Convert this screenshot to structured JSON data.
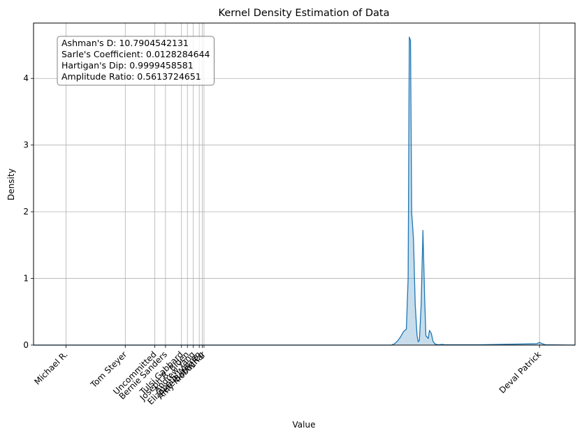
{
  "chart_data": {
    "type": "area",
    "title": "Kernel Density Estimation of Data",
    "xlabel": "Value",
    "ylabel": "Density",
    "ylim": [
      0,
      4.83
    ],
    "y_ticks": [
      0,
      1,
      2,
      3,
      4
    ],
    "grid": true,
    "line_color": "#1f77b4",
    "fill_color": "#1f77b4",
    "fill_opacity": 0.25,
    "x_categories": [
      "Michael R.",
      "Tom Steyer",
      "Uncommitted",
      "Bernie Sanders",
      "Tulsi Gabbard",
      "Joseph R. Biden",
      "Andrew Yang",
      "Elizabeth Warren",
      "Pete Buttigieg",
      "Amy Klobuchar",
      "Deval Patrick"
    ],
    "x_tick_values": [
      0,
      1,
      1.5,
      1.68,
      1.95,
      2.05,
      2.15,
      2.25,
      2.3,
      2.33,
      8.0
    ],
    "xlim": [
      -0.55,
      8.6
    ],
    "density_curve": {
      "x": [
        -0.55,
        5.5,
        5.55,
        5.6,
        5.65,
        5.7,
        5.75,
        5.78,
        5.8,
        5.82,
        5.84,
        5.87,
        5.9,
        5.93,
        5.95,
        5.97,
        6.0,
        6.03,
        6.06,
        6.08,
        6.1,
        6.12,
        6.14,
        6.17,
        6.2,
        6.23,
        6.26,
        6.3,
        6.35,
        6.4,
        6.5,
        7.0,
        7.95,
        8.0,
        8.05,
        8.1,
        8.6
      ],
      "y": [
        0,
        0,
        0.02,
        0.06,
        0.12,
        0.2,
        0.24,
        1.0,
        4.62,
        4.57,
        1.98,
        1.6,
        0.6,
        0.15,
        0.05,
        0.07,
        0.6,
        1.72,
        0.68,
        0.14,
        0.12,
        0.1,
        0.22,
        0.18,
        0.06,
        0.02,
        0.01,
        0.005,
        0.01,
        0.005,
        0.005,
        0.005,
        0.02,
        0.04,
        0.02,
        0.005,
        0
      ]
    },
    "annotation": {
      "lines": [
        "Ashman's D: 10.7904542131",
        "Sarle's Coefficient: 0.0128284644",
        "Hartigan's Dip: 0.9999458581",
        "Amplitude Ratio: 0.5613724651"
      ],
      "placement": "top-left"
    }
  }
}
